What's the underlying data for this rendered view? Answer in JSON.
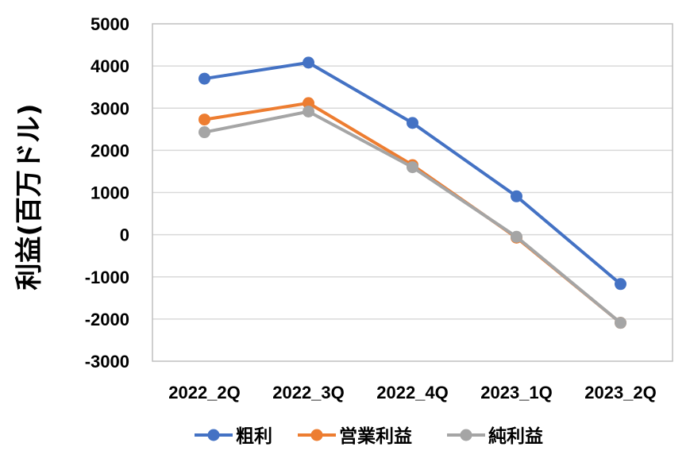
{
  "chart_data": {
    "type": "line",
    "title": "",
    "xlabel": "",
    "ylabel": "利益(百万ドル)",
    "ylim": [
      -3000,
      5000
    ],
    "yticks": [
      5000,
      4000,
      3000,
      2000,
      1000,
      0,
      -1000,
      -2000,
      -3000
    ],
    "grid": true,
    "legend_position": "bottom",
    "categories": [
      "2022_2Q",
      "2022_3Q",
      "2022_4Q",
      "2023_1Q",
      "2023_2Q"
    ],
    "series": [
      {
        "name": "粗利",
        "color": "#4472C4",
        "values": [
          3700,
          4080,
          2650,
          910,
          -1170
        ]
      },
      {
        "name": "営業利益",
        "color": "#ED7D31",
        "values": [
          2730,
          3120,
          1650,
          -70,
          -2090
        ]
      },
      {
        "name": "純利益",
        "color": "#A5A5A5",
        "values": [
          2430,
          2920,
          1600,
          -50,
          -2090
        ]
      }
    ]
  }
}
